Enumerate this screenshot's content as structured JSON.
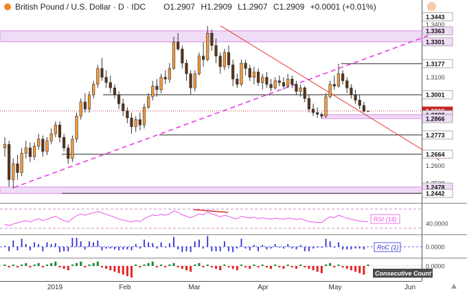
{
  "header": {
    "symbol": "British Pound / U.S. Dollar · D · IDC",
    "open": "O1.2907",
    "high": "H1.2909",
    "low": "L1.2907",
    "close": "C1.2909",
    "change": "+0.0001 (+0.01%)"
  },
  "colors": {
    "up": "#f59a3c",
    "down": "#5b3318",
    "zone": "#efdcf7",
    "zone_border": "#d98ae3",
    "trend_pink": "#e839e8",
    "trend_red": "#e8312f",
    "rsi": "#e655e6",
    "roc": "#2b2bd6",
    "count_pos": "#1a8a2e",
    "count_neg": "#e52222"
  },
  "chart_data": {
    "type": "candlestick",
    "price_axis": {
      "ylim": [
        1.24,
        1.346
      ],
      "ticks": [
        "1.3443",
        "1.3400",
        "1.3363",
        "1.3301",
        "1.3177",
        "1.3100",
        "1.3001",
        "1.2909",
        "1.2888",
        "1.2866",
        "1.2773",
        "1.2664",
        "1.2600",
        "1.2500",
        "1.2478",
        "1.2442"
      ],
      "highlighted": [
        "1.3443",
        "1.3363",
        "1.3301",
        "1.3177",
        "1.3001",
        "1.2909",
        "1.2888",
        "1.2866",
        "1.2773",
        "1.2664",
        "1.2478",
        "1.2442"
      ]
    },
    "x_ticks": [
      "2019",
      "Feb",
      "Mar",
      "Apr",
      "May",
      "Jun"
    ],
    "candles_ohlc": [
      [
        1.27,
        1.276,
        1.265,
        1.272
      ],
      [
        1.272,
        1.274,
        1.248,
        1.252
      ],
      [
        1.252,
        1.264,
        1.247,
        1.261
      ],
      [
        1.261,
        1.266,
        1.252,
        1.256
      ],
      [
        1.256,
        1.27,
        1.254,
        1.267
      ],
      [
        1.267,
        1.274,
        1.264,
        1.27
      ],
      [
        1.27,
        1.273,
        1.262,
        1.265
      ],
      [
        1.265,
        1.273,
        1.263,
        1.271
      ],
      [
        1.271,
        1.278,
        1.269,
        1.275
      ],
      [
        1.275,
        1.277,
        1.265,
        1.268
      ],
      [
        1.268,
        1.276,
        1.266,
        1.274
      ],
      [
        1.274,
        1.281,
        1.272,
        1.278
      ],
      [
        1.278,
        1.285,
        1.276,
        1.283
      ],
      [
        1.283,
        1.285,
        1.273,
        1.276
      ],
      [
        1.276,
        1.278,
        1.268,
        1.27
      ],
      [
        1.27,
        1.272,
        1.261,
        1.264
      ],
      [
        1.264,
        1.277,
        1.262,
        1.275
      ],
      [
        1.275,
        1.29,
        1.273,
        1.288
      ],
      [
        1.288,
        1.298,
        1.286,
        1.296
      ],
      [
        1.296,
        1.301,
        1.29,
        1.292
      ],
      [
        1.292,
        1.302,
        1.29,
        1.3
      ],
      [
        1.3,
        1.308,
        1.298,
        1.306
      ],
      [
        1.306,
        1.317,
        1.304,
        1.315
      ],
      [
        1.315,
        1.321,
        1.308,
        1.31
      ],
      [
        1.31,
        1.314,
        1.304,
        1.307
      ],
      [
        1.307,
        1.311,
        1.301,
        1.304
      ],
      [
        1.304,
        1.306,
        1.298,
        1.3
      ],
      [
        1.3,
        1.302,
        1.292,
        1.295
      ],
      [
        1.295,
        1.298,
        1.288,
        1.291
      ],
      [
        1.291,
        1.293,
        1.284,
        1.287
      ],
      [
        1.287,
        1.29,
        1.278,
        1.282
      ],
      [
        1.282,
        1.288,
        1.279,
        1.286
      ],
      [
        1.286,
        1.29,
        1.28,
        1.283
      ],
      [
        1.283,
        1.295,
        1.281,
        1.293
      ],
      [
        1.293,
        1.301,
        1.292,
        1.299
      ],
      [
        1.299,
        1.308,
        1.297,
        1.305
      ],
      [
        1.305,
        1.309,
        1.299,
        1.303
      ],
      [
        1.303,
        1.312,
        1.301,
        1.31
      ],
      [
        1.31,
        1.314,
        1.306,
        1.309
      ],
      [
        1.309,
        1.318,
        1.307,
        1.315
      ],
      [
        1.315,
        1.333,
        1.314,
        1.33
      ],
      [
        1.33,
        1.335,
        1.325,
        1.326
      ],
      [
        1.326,
        1.328,
        1.315,
        1.318
      ],
      [
        1.318,
        1.32,
        1.308,
        1.312
      ],
      [
        1.312,
        1.314,
        1.3,
        1.304
      ],
      [
        1.304,
        1.314,
        1.302,
        1.312
      ],
      [
        1.312,
        1.324,
        1.311,
        1.322
      ],
      [
        1.322,
        1.33,
        1.316,
        1.32
      ],
      [
        1.32,
        1.339,
        1.319,
        1.335
      ],
      [
        1.335,
        1.337,
        1.325,
        1.328
      ],
      [
        1.328,
        1.332,
        1.318,
        1.322
      ],
      [
        1.322,
        1.324,
        1.312,
        1.316
      ],
      [
        1.316,
        1.326,
        1.314,
        1.324
      ],
      [
        1.324,
        1.328,
        1.315,
        1.317
      ],
      [
        1.317,
        1.32,
        1.305,
        1.309
      ],
      [
        1.309,
        1.312,
        1.304,
        1.306
      ],
      [
        1.306,
        1.32,
        1.305,
        1.318
      ],
      [
        1.318,
        1.32,
        1.311,
        1.315
      ],
      [
        1.315,
        1.317,
        1.308,
        1.31
      ],
      [
        1.31,
        1.316,
        1.306,
        1.313
      ],
      [
        1.313,
        1.315,
        1.305,
        1.307
      ],
      [
        1.307,
        1.312,
        1.303,
        1.31
      ],
      [
        1.31,
        1.313,
        1.304,
        1.306
      ],
      [
        1.306,
        1.309,
        1.302,
        1.304
      ],
      [
        1.304,
        1.31,
        1.303,
        1.308
      ],
      [
        1.308,
        1.311,
        1.305,
        1.307
      ],
      [
        1.307,
        1.31,
        1.303,
        1.305
      ],
      [
        1.305,
        1.312,
        1.304,
        1.309
      ],
      [
        1.309,
        1.311,
        1.304,
        1.306
      ],
      [
        1.306,
        1.308,
        1.3,
        1.302
      ],
      [
        1.302,
        1.306,
        1.299,
        1.304
      ],
      [
        1.304,
        1.305,
        1.296,
        1.298
      ],
      [
        1.298,
        1.3,
        1.29,
        1.292
      ],
      [
        1.292,
        1.295,
        1.288,
        1.29
      ],
      [
        1.29,
        1.293,
        1.287,
        1.289
      ],
      [
        1.289,
        1.29,
        1.2866,
        1.288
      ],
      [
        1.288,
        1.301,
        1.287,
        1.299
      ],
      [
        1.299,
        1.308,
        1.298,
        1.306
      ],
      [
        1.306,
        1.311,
        1.303,
        1.305
      ],
      [
        1.305,
        1.3177,
        1.304,
        1.312
      ],
      [
        1.312,
        1.314,
        1.306,
        1.308
      ],
      [
        1.308,
        1.31,
        1.301,
        1.304
      ],
      [
        1.304,
        1.306,
        1.298,
        1.3
      ],
      [
        1.3,
        1.303,
        1.295,
        1.297
      ],
      [
        1.297,
        1.3,
        1.292,
        1.294
      ],
      [
        1.294,
        1.296,
        1.29,
        1.2907
      ],
      [
        1.2907,
        1.2909,
        1.2907,
        1.2909
      ]
    ],
    "rsi": {
      "label": "RSI (14)",
      "scale_label": "40.0000",
      "ylim": [
        20,
        80
      ],
      "values": [
        38,
        36,
        39,
        41,
        44,
        46,
        43,
        47,
        50,
        46,
        49,
        52,
        55,
        50,
        46,
        43,
        50,
        56,
        60,
        57,
        60,
        62,
        65,
        62,
        59,
        56,
        53,
        49,
        47,
        45,
        43,
        46,
        44,
        50,
        54,
        58,
        56,
        59,
        57,
        60,
        66,
        63,
        58,
        55,
        52,
        56,
        60,
        58,
        64,
        60,
        57,
        54,
        57,
        55,
        51,
        50,
        55,
        53,
        51,
        53,
        50,
        52,
        50,
        49,
        51,
        50,
        49,
        51,
        50,
        48,
        50,
        47,
        44,
        43,
        42,
        42,
        49,
        54,
        52,
        57,
        54,
        51,
        49,
        47,
        45,
        44,
        44
      ]
    },
    "roc": {
      "label": "RoC (1)",
      "scale_label": "0.0000",
      "values": [
        0.1,
        -0.5,
        0.7,
        -0.4,
        0.9,
        0.3,
        -0.4,
        0.5,
        0.3,
        -0.5,
        0.5,
        0.3,
        0.4,
        -0.6,
        -0.5,
        -0.5,
        1.0,
        1.0,
        0.6,
        -0.3,
        0.6,
        0.5,
        0.7,
        -0.4,
        -0.2,
        -0.2,
        -0.3,
        -0.4,
        -0.3,
        -0.3,
        -0.4,
        0.3,
        -0.2,
        0.8,
        0.5,
        0.4,
        -0.2,
        0.5,
        -0.1,
        0.4,
        1.1,
        -0.3,
        -0.6,
        -0.5,
        -0.6,
        0.6,
        0.8,
        -0.2,
        1.2,
        -0.5,
        -0.5,
        -0.5,
        0.6,
        -0.5,
        -0.6,
        -0.2,
        0.9,
        -0.2,
        -0.4,
        0.2,
        -0.5,
        0.2,
        -0.3,
        -0.2,
        0.3,
        -0.1,
        -0.2,
        0.3,
        -0.2,
        -0.3,
        0.2,
        -0.5,
        -0.5,
        -0.2,
        -0.1,
        -0.1,
        0.9,
        0.6,
        -0.1,
        0.5,
        -0.3,
        -0.3,
        -0.3,
        -0.2,
        -0.2,
        -0.3,
        0.0
      ]
    },
    "count": {
      "label": "Consecutive Count",
      "scale_label": "0.0000",
      "values": [
        1,
        -1,
        1,
        -1,
        1,
        2,
        -1,
        1,
        2,
        -1,
        1,
        2,
        3,
        -1,
        -2,
        -3,
        1,
        2,
        3,
        -1,
        1,
        2,
        3,
        -1,
        -2,
        -3,
        -4,
        -5,
        -6,
        -7,
        -8,
        1,
        -1,
        1,
        2,
        3,
        -1,
        1,
        -1,
        1,
        2,
        -1,
        -2,
        -3,
        -4,
        1,
        2,
        -1,
        1,
        -1,
        -2,
        -3,
        1,
        -1,
        -2,
        -3,
        1,
        -1,
        -2,
        1,
        -1,
        1,
        -1,
        -2,
        1,
        -1,
        -2,
        1,
        -1,
        -2,
        1,
        -1,
        -2,
        -3,
        -4,
        -5,
        1,
        2,
        -1,
        1,
        -1,
        -2,
        -3,
        -4,
        -5,
        -6,
        1
      ]
    }
  }
}
